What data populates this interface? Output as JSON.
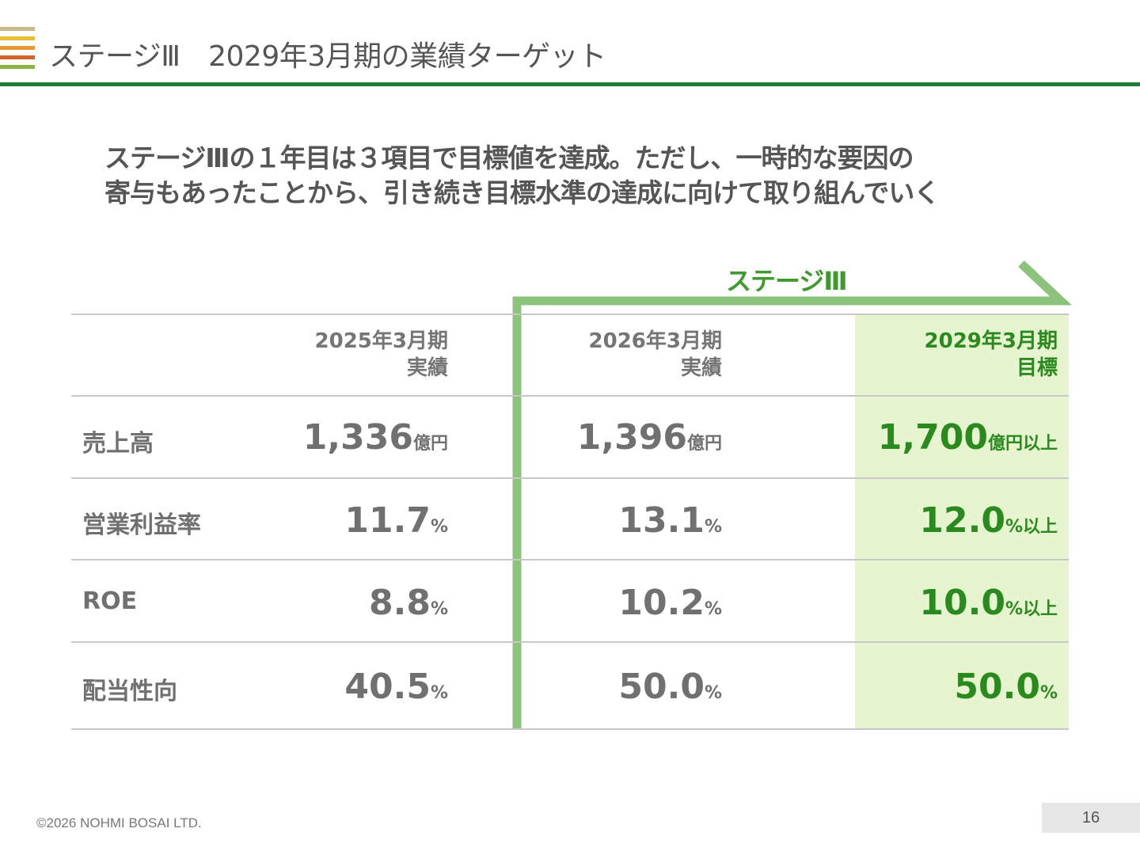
{
  "header": {
    "title": "ステージⅢ　2029年3月期の業績ターゲット"
  },
  "headline": {
    "line1": "ステージⅢの１年目は３項目で目標値を達成。ただし、一時的な要因の",
    "line2": "寄与もあったことから、引き続き目標水準の達成に向けて取り組んでいく"
  },
  "stage": {
    "label": "ステージⅢ"
  },
  "table": {
    "columns": [
      {
        "line1": "2025年3月期",
        "line2": "実績"
      },
      {
        "line1": "2026年3月期",
        "line2": "実績"
      },
      {
        "line1": "2029年3月期",
        "line2": "目標"
      }
    ],
    "rows": [
      {
        "label": "売上高",
        "values": [
          {
            "num": "1,336",
            "unit": "億円"
          },
          {
            "num": "1,396",
            "unit": "億円"
          },
          {
            "num": "1,700",
            "unit": "億円以上"
          }
        ]
      },
      {
        "label": "営業利益率",
        "values": [
          {
            "num": "11.7",
            "unit": "%"
          },
          {
            "num": "13.1",
            "unit": "%"
          },
          {
            "num": "12.0",
            "unit": "%以上"
          }
        ]
      },
      {
        "label": "ROE",
        "values": [
          {
            "num": "8.8",
            "unit": "%"
          },
          {
            "num": "10.2",
            "unit": "%"
          },
          {
            "num": "10.0",
            "unit": "%以上"
          }
        ]
      },
      {
        "label": "配当性向",
        "values": [
          {
            "num": "40.5",
            "unit": "%"
          },
          {
            "num": "50.0",
            "unit": "%"
          },
          {
            "num": "50.0",
            "unit": "%"
          }
        ]
      }
    ]
  },
  "footer": {
    "copyright": "©2026 NOHMI BOSAI LTD.",
    "page_number": "16"
  },
  "colors": {
    "accent_green": "#1e7a36",
    "stage_green": "#8cc37c",
    "target_bg": "#e6f5d0",
    "target_text": "#2a8a1e"
  }
}
